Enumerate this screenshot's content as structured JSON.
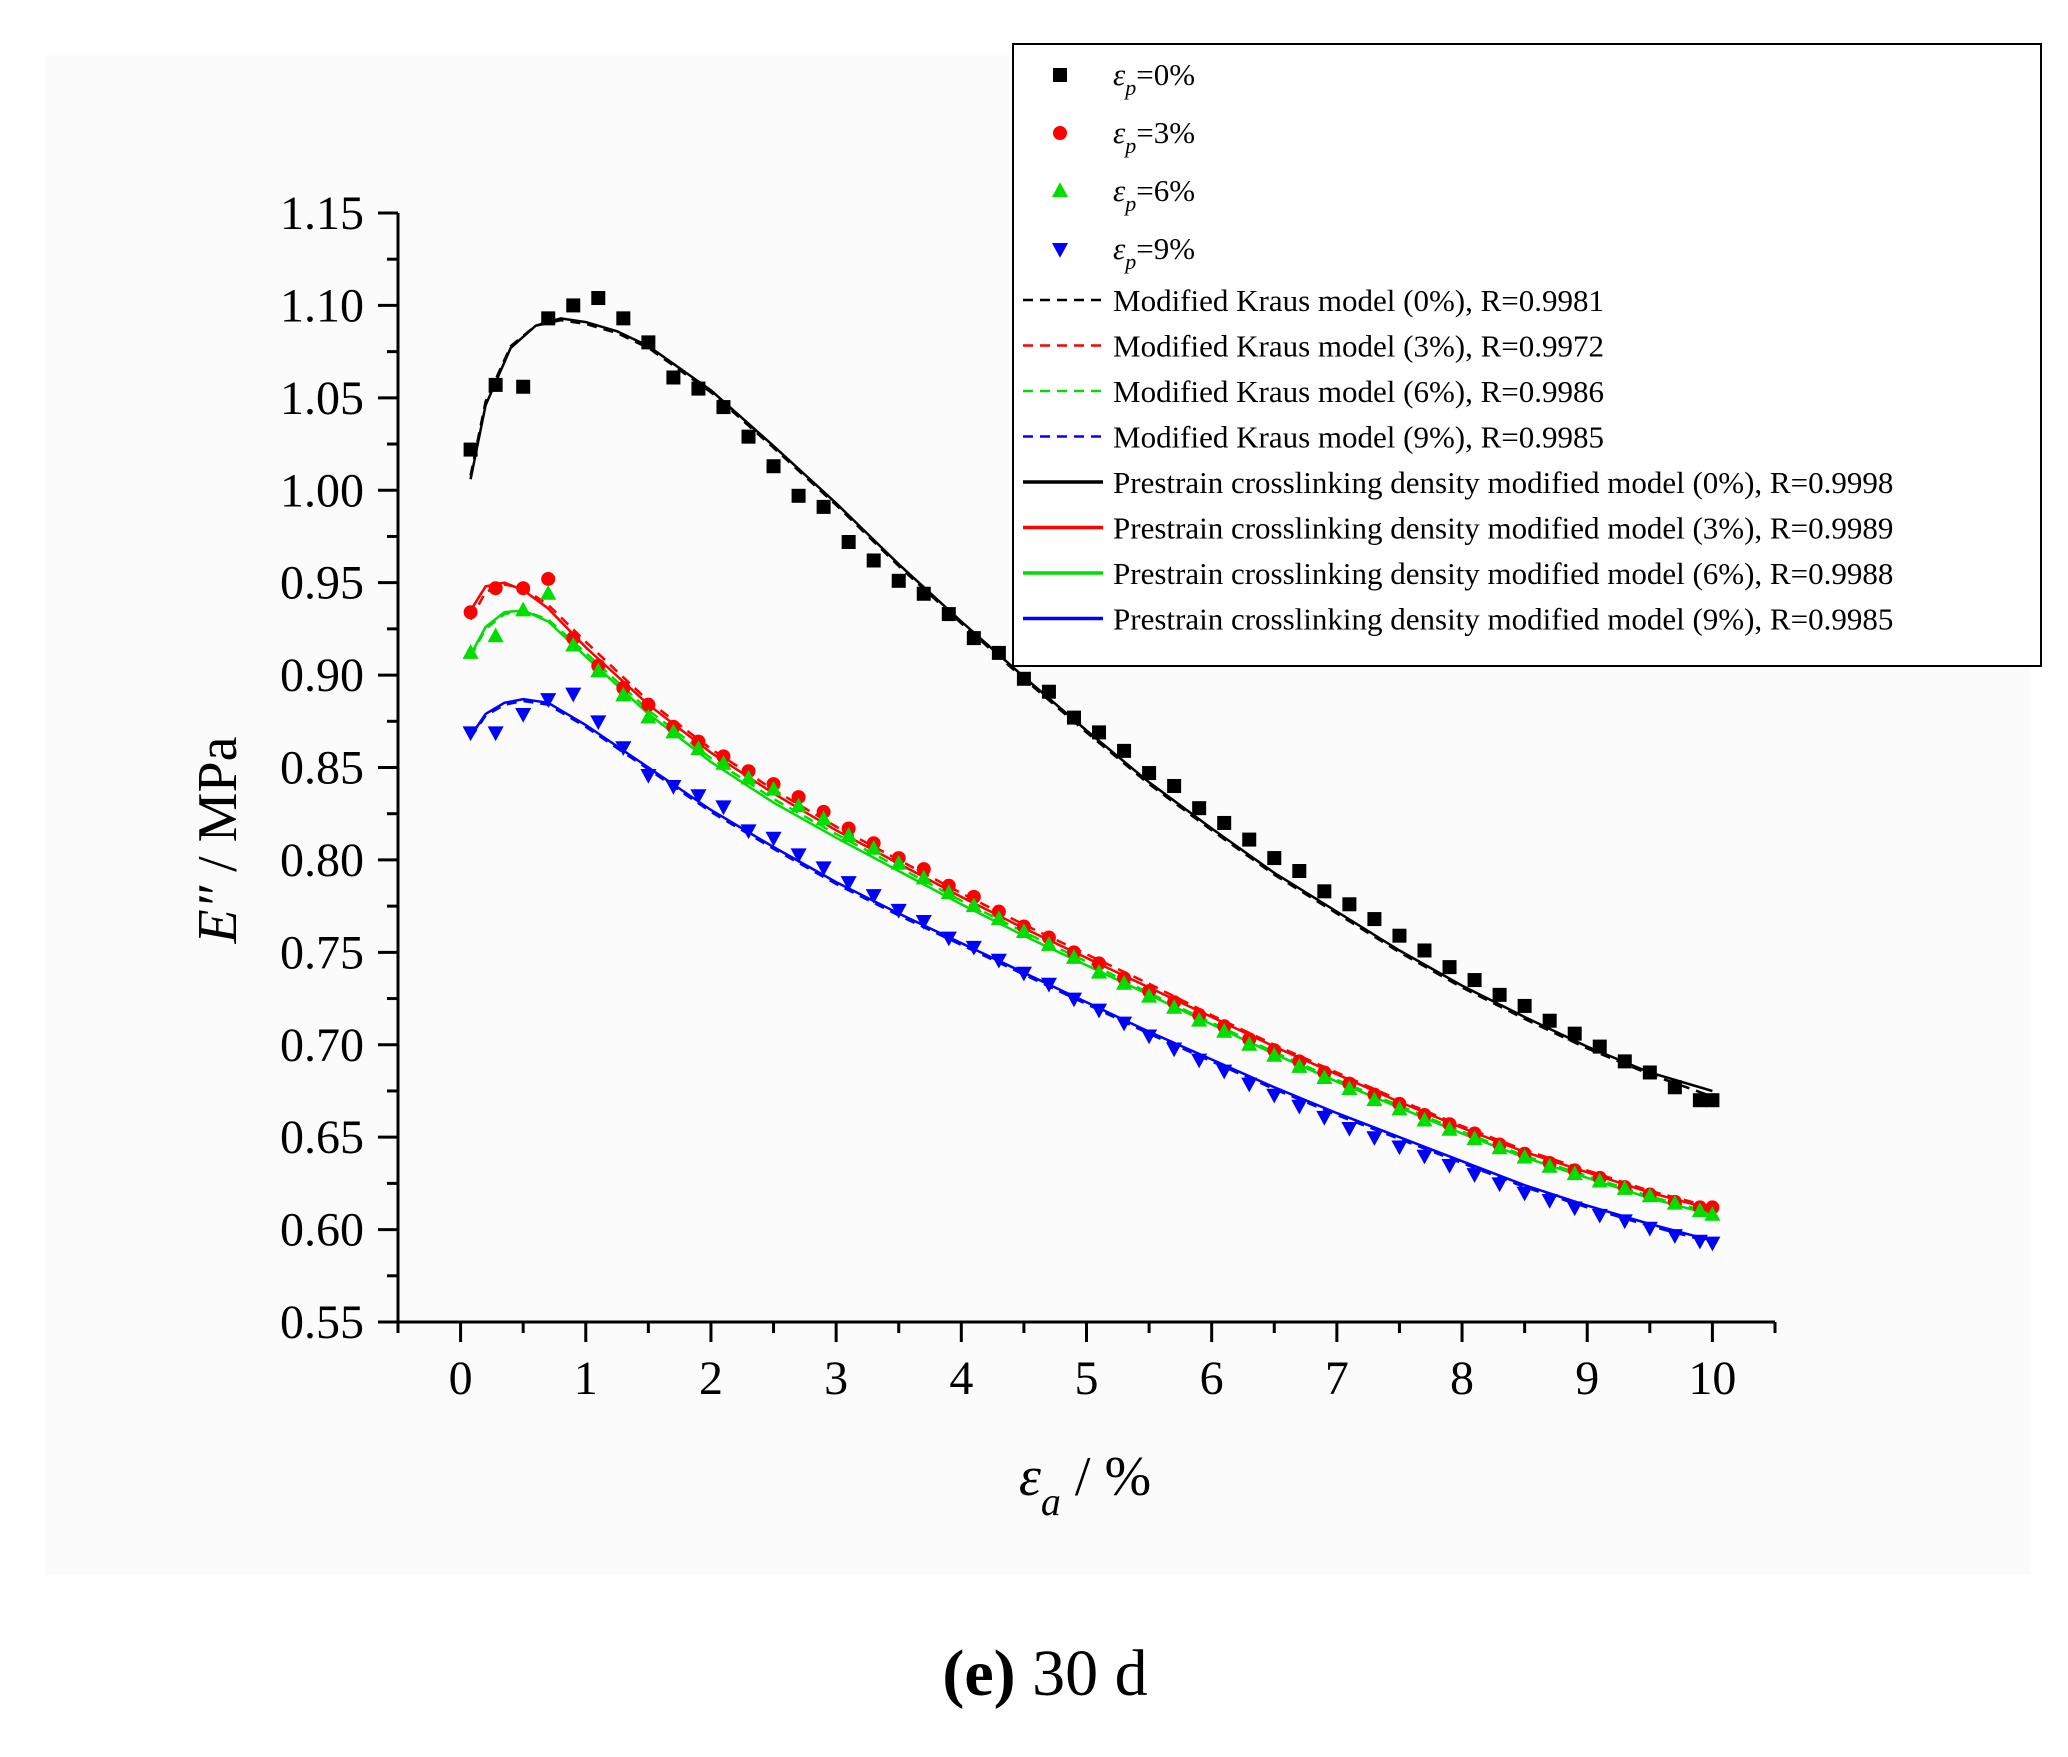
{
  "chart_data": {
    "type": "scatter",
    "title": "",
    "caption_label": "(e)",
    "caption_text": "30 d",
    "xlabel_symbol": "ε",
    "xlabel_sub": "a",
    "xlabel_unit": " / %",
    "ylabel_symbol": "E″",
    "ylabel_unit": " / MPa",
    "xlim": [
      -0.5,
      10.5
    ],
    "ylim": [
      0.55,
      1.15
    ],
    "xticks": [
      "0",
      "1",
      "2",
      "3",
      "4",
      "5",
      "6",
      "7",
      "8",
      "9",
      "10"
    ],
    "yticks": [
      "0.55",
      "0.60",
      "0.65",
      "0.70",
      "0.75",
      "0.80",
      "0.85",
      "0.90",
      "0.95",
      "1.00",
      "1.05",
      "1.10",
      "1.15"
    ],
    "legend_position": "top-right",
    "series": [
      {
        "name": "εp=0%",
        "symbol_main": "ε",
        "symbol_sub": "p",
        "label_rest": "=0%",
        "color": "#000000",
        "marker": "square",
        "x": [
          0.08,
          0.28,
          0.5,
          0.7,
          0.9,
          1.1,
          1.3,
          1.5,
          1.7,
          1.9,
          2.1,
          2.3,
          2.5,
          2.7,
          2.9,
          3.1,
          3.3,
          3.5,
          3.7,
          3.9,
          4.1,
          4.3,
          4.5,
          4.7,
          4.9,
          5.1,
          5.3,
          5.5,
          5.7,
          5.9,
          6.1,
          6.3,
          6.5,
          6.7,
          6.9,
          7.1,
          7.3,
          7.5,
          7.7,
          7.9,
          8.1,
          8.3,
          8.5,
          8.7,
          8.9,
          9.1,
          9.3,
          9.5,
          9.7,
          9.9,
          10.0
        ],
        "y": [
          1.022,
          1.057,
          1.056,
          1.093,
          1.1,
          1.104,
          1.093,
          1.08,
          1.061,
          1.055,
          1.045,
          1.029,
          1.013,
          0.997,
          0.991,
          0.972,
          0.962,
          0.951,
          0.944,
          0.933,
          0.92,
          0.912,
          0.898,
          0.891,
          0.877,
          0.869,
          0.859,
          0.847,
          0.84,
          0.828,
          0.82,
          0.811,
          0.801,
          0.794,
          0.783,
          0.776,
          0.768,
          0.759,
          0.751,
          0.742,
          0.735,
          0.727,
          0.721,
          0.713,
          0.706,
          0.699,
          0.691,
          0.685,
          0.677,
          0.67,
          0.67
        ]
      },
      {
        "name": "εp=3%",
        "symbol_main": "ε",
        "symbol_sub": "p",
        "label_rest": "=3%",
        "color": "#ff0000",
        "marker": "circle",
        "x": [
          0.08,
          0.28,
          0.5,
          0.7,
          0.9,
          1.1,
          1.3,
          1.5,
          1.7,
          1.9,
          2.1,
          2.3,
          2.5,
          2.7,
          2.9,
          3.1,
          3.3,
          3.5,
          3.7,
          3.9,
          4.1,
          4.3,
          4.5,
          4.7,
          4.9,
          5.1,
          5.3,
          5.5,
          5.7,
          5.9,
          6.1,
          6.3,
          6.5,
          6.7,
          6.9,
          7.1,
          7.3,
          7.5,
          7.7,
          7.9,
          8.1,
          8.3,
          8.5,
          8.7,
          8.9,
          9.1,
          9.3,
          9.5,
          9.7,
          9.9,
          10.0
        ],
        "y": [
          0.934,
          0.947,
          0.947,
          0.952,
          0.92,
          0.905,
          0.893,
          0.884,
          0.872,
          0.864,
          0.856,
          0.848,
          0.841,
          0.834,
          0.826,
          0.817,
          0.809,
          0.801,
          0.795,
          0.786,
          0.78,
          0.772,
          0.764,
          0.758,
          0.75,
          0.744,
          0.736,
          0.729,
          0.723,
          0.716,
          0.71,
          0.703,
          0.697,
          0.691,
          0.685,
          0.679,
          0.673,
          0.668,
          0.662,
          0.657,
          0.652,
          0.646,
          0.641,
          0.636,
          0.632,
          0.628,
          0.623,
          0.619,
          0.615,
          0.612,
          0.612
        ]
      },
      {
        "name": "εp=6%",
        "symbol_main": "ε",
        "symbol_sub": "p",
        "label_rest": "=6%",
        "color": "#00dd00",
        "marker": "triangle-up",
        "x": [
          0.08,
          0.28,
          0.5,
          0.7,
          0.9,
          1.1,
          1.3,
          1.5,
          1.7,
          1.9,
          2.1,
          2.3,
          2.5,
          2.7,
          2.9,
          3.1,
          3.3,
          3.5,
          3.7,
          3.9,
          4.1,
          4.3,
          4.5,
          4.7,
          4.9,
          5.1,
          5.3,
          5.5,
          5.7,
          5.9,
          6.1,
          6.3,
          6.5,
          6.7,
          6.9,
          7.1,
          7.3,
          7.5,
          7.7,
          7.9,
          8.1,
          8.3,
          8.5,
          8.7,
          8.9,
          9.1,
          9.3,
          9.5,
          9.7,
          9.9,
          10.0
        ],
        "y": [
          0.912,
          0.921,
          0.935,
          0.944,
          0.916,
          0.902,
          0.889,
          0.877,
          0.869,
          0.86,
          0.852,
          0.844,
          0.838,
          0.829,
          0.822,
          0.813,
          0.806,
          0.798,
          0.79,
          0.782,
          0.775,
          0.768,
          0.761,
          0.754,
          0.747,
          0.739,
          0.733,
          0.726,
          0.72,
          0.713,
          0.707,
          0.7,
          0.694,
          0.688,
          0.682,
          0.676,
          0.67,
          0.665,
          0.659,
          0.654,
          0.649,
          0.644,
          0.639,
          0.634,
          0.63,
          0.626,
          0.622,
          0.618,
          0.614,
          0.61,
          0.608
        ]
      },
      {
        "name": "εp=9%",
        "symbol_main": "ε",
        "symbol_sub": "p",
        "label_rest": "=9%",
        "color": "#0000ff",
        "marker": "triangle-down",
        "x": [
          0.08,
          0.28,
          0.5,
          0.7,
          0.9,
          1.1,
          1.3,
          1.5,
          1.7,
          1.9,
          2.1,
          2.3,
          2.5,
          2.7,
          2.9,
          3.1,
          3.3,
          3.5,
          3.7,
          3.9,
          4.1,
          4.3,
          4.5,
          4.7,
          4.9,
          5.1,
          5.3,
          5.5,
          5.7,
          5.9,
          6.1,
          6.3,
          6.5,
          6.7,
          6.9,
          7.1,
          7.3,
          7.5,
          7.7,
          7.9,
          8.1,
          8.3,
          8.5,
          8.7,
          8.9,
          9.1,
          9.3,
          9.5,
          9.7,
          9.9,
          10.0
        ],
        "y": [
          0.869,
          0.869,
          0.879,
          0.887,
          0.89,
          0.875,
          0.861,
          0.846,
          0.84,
          0.835,
          0.829,
          0.816,
          0.812,
          0.803,
          0.796,
          0.788,
          0.781,
          0.773,
          0.767,
          0.758,
          0.753,
          0.746,
          0.739,
          0.733,
          0.725,
          0.719,
          0.712,
          0.705,
          0.698,
          0.692,
          0.686,
          0.679,
          0.673,
          0.667,
          0.661,
          0.655,
          0.65,
          0.645,
          0.64,
          0.635,
          0.63,
          0.625,
          0.62,
          0.616,
          0.612,
          0.608,
          0.605,
          0.601,
          0.597,
          0.594,
          0.593
        ]
      }
    ],
    "fits": [
      {
        "name": "Modified Kraus model (0%), R=0.9981",
        "color": "#000000",
        "style": "dashed",
        "x": [
          0.08,
          0.2,
          0.4,
          0.6,
          0.8,
          1,
          1.25,
          1.5,
          2,
          2.5,
          3,
          3.5,
          4,
          4.5,
          5,
          5.5,
          6,
          6.5,
          7,
          7.5,
          8,
          8.5,
          9,
          9.5,
          10
        ],
        "y": [
          1.008,
          1.048,
          1.078,
          1.089,
          1.092,
          1.09,
          1.085,
          1.077,
          1.053,
          1.023,
          0.992,
          0.959,
          0.928,
          0.898,
          0.869,
          0.841,
          0.816,
          0.792,
          0.771,
          0.75,
          0.731,
          0.714,
          0.698,
          0.684,
          0.672
        ]
      },
      {
        "name": "Modified Kraus model (3%), R=0.9972",
        "color": "#ff0000",
        "style": "dashed",
        "x": [
          0.08,
          0.2,
          0.35,
          0.5,
          0.7,
          1,
          1.5,
          2,
          2.5,
          3,
          3.5,
          4,
          4.5,
          5,
          5.5,
          6,
          6.5,
          7,
          7.5,
          8,
          8.5,
          9,
          9.5,
          10
        ],
        "y": [
          0.93,
          0.945,
          0.949,
          0.947,
          0.938,
          0.918,
          0.886,
          0.86,
          0.838,
          0.818,
          0.8,
          0.782,
          0.765,
          0.749,
          0.733,
          0.716,
          0.7,
          0.685,
          0.67,
          0.656,
          0.643,
          0.632,
          0.621,
          0.612
        ]
      },
      {
        "name": "Modified Kraus model (6%), R=0.9986",
        "color": "#00dd00",
        "style": "dashed",
        "x": [
          0.08,
          0.2,
          0.35,
          0.5,
          0.7,
          1,
          1.5,
          2,
          2.5,
          3,
          3.5,
          4,
          4.5,
          5,
          5.5,
          6,
          6.5,
          7,
          7.5,
          8,
          8.5,
          9,
          9.5,
          10
        ],
        "y": [
          0.91,
          0.925,
          0.933,
          0.935,
          0.93,
          0.912,
          0.881,
          0.855,
          0.833,
          0.814,
          0.796,
          0.778,
          0.761,
          0.745,
          0.728,
          0.712,
          0.696,
          0.681,
          0.667,
          0.653,
          0.64,
          0.629,
          0.618,
          0.609
        ]
      },
      {
        "name": "Modified Kraus model (9%), R=0.9985",
        "color": "#0000ff",
        "style": "dashed",
        "x": [
          0.08,
          0.2,
          0.35,
          0.5,
          0.7,
          1,
          1.5,
          2,
          2.5,
          3,
          3.5,
          4,
          4.5,
          5,
          5.5,
          6,
          6.5,
          7,
          7.5,
          8,
          8.5,
          9,
          9.5,
          10
        ],
        "y": [
          0.866,
          0.878,
          0.884,
          0.886,
          0.884,
          0.872,
          0.849,
          0.826,
          0.806,
          0.787,
          0.77,
          0.754,
          0.738,
          0.722,
          0.706,
          0.691,
          0.676,
          0.662,
          0.649,
          0.636,
          0.623,
          0.612,
          0.602,
          0.593
        ]
      },
      {
        "name": "Prestrain crosslinking density modified model (0%), R=0.9998",
        "color": "#000000",
        "style": "solid",
        "x": [
          0.08,
          0.2,
          0.4,
          0.6,
          0.8,
          1,
          1.25,
          1.5,
          2,
          2.5,
          3,
          3.5,
          4,
          4.5,
          5,
          5.5,
          6,
          6.5,
          7,
          7.5,
          8,
          8.5,
          9,
          9.5,
          10
        ],
        "y": [
          1.006,
          1.046,
          1.077,
          1.089,
          1.093,
          1.091,
          1.086,
          1.078,
          1.054,
          1.024,
          0.993,
          0.96,
          0.929,
          0.899,
          0.87,
          0.842,
          0.817,
          0.793,
          0.772,
          0.751,
          0.732,
          0.715,
          0.699,
          0.685,
          0.675
        ]
      },
      {
        "name": "Prestrain crosslinking density modified model (3%), R=0.9989",
        "color": "#ff0000",
        "style": "solid",
        "x": [
          0.08,
          0.2,
          0.35,
          0.5,
          0.7,
          1,
          1.5,
          2,
          2.5,
          3,
          3.5,
          4,
          4.5,
          5,
          5.5,
          6,
          6.5,
          7,
          7.5,
          8,
          8.5,
          9,
          9.5,
          10
        ],
        "y": [
          0.935,
          0.948,
          0.95,
          0.946,
          0.936,
          0.915,
          0.884,
          0.858,
          0.836,
          0.816,
          0.798,
          0.78,
          0.763,
          0.747,
          0.731,
          0.715,
          0.699,
          0.684,
          0.669,
          0.655,
          0.642,
          0.631,
          0.62,
          0.611
        ]
      },
      {
        "name": "Prestrain crosslinking density modified model (6%), R=0.9988",
        "color": "#00dd00",
        "style": "solid",
        "x": [
          0.08,
          0.2,
          0.35,
          0.5,
          0.7,
          1,
          1.5,
          2,
          2.5,
          3,
          3.5,
          4,
          4.5,
          5,
          5.5,
          6,
          6.5,
          7,
          7.5,
          8,
          8.5,
          9,
          9.5,
          10
        ],
        "y": [
          0.911,
          0.926,
          0.934,
          0.935,
          0.929,
          0.91,
          0.879,
          0.853,
          0.831,
          0.812,
          0.794,
          0.776,
          0.759,
          0.743,
          0.727,
          0.711,
          0.695,
          0.68,
          0.666,
          0.652,
          0.639,
          0.628,
          0.617,
          0.608
        ]
      },
      {
        "name": "Prestrain crosslinking density modified model (9%), R=0.9985",
        "color": "#0000ff",
        "style": "solid",
        "x": [
          0.08,
          0.2,
          0.35,
          0.5,
          0.7,
          1,
          1.5,
          2,
          2.5,
          3,
          3.5,
          4,
          4.5,
          5,
          5.5,
          6,
          6.5,
          7,
          7.5,
          8,
          8.5,
          9,
          9.5,
          10
        ],
        "y": [
          0.867,
          0.879,
          0.885,
          0.887,
          0.885,
          0.873,
          0.85,
          0.827,
          0.807,
          0.788,
          0.771,
          0.755,
          0.739,
          0.723,
          0.707,
          0.692,
          0.677,
          0.663,
          0.65,
          0.637,
          0.624,
          0.613,
          0.603,
          0.594
        ]
      }
    ]
  }
}
